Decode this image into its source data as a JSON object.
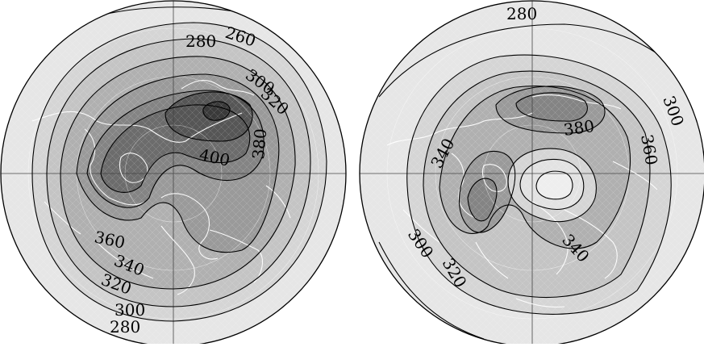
{
  "maps": [
    {
      "id": "left",
      "labels": [
        "260",
        "280",
        "300",
        "320",
        "380",
        "400",
        "360",
        "340",
        "320",
        "300",
        "280"
      ]
    },
    {
      "id": "right",
      "labels": [
        "280",
        "300",
        "380",
        "360",
        "340",
        "300",
        "320",
        "340"
      ]
    }
  ],
  "colors": {
    "level0": "#e6e6e6",
    "level1": "#d5d5d5",
    "level2": "#c4c4c4",
    "level3": "#b0b0b0",
    "level4": "#9a9a9a",
    "level5": "#848484",
    "level6": "#6c6c6c",
    "level7": "#565656",
    "level8": "#3a3a3a"
  }
}
